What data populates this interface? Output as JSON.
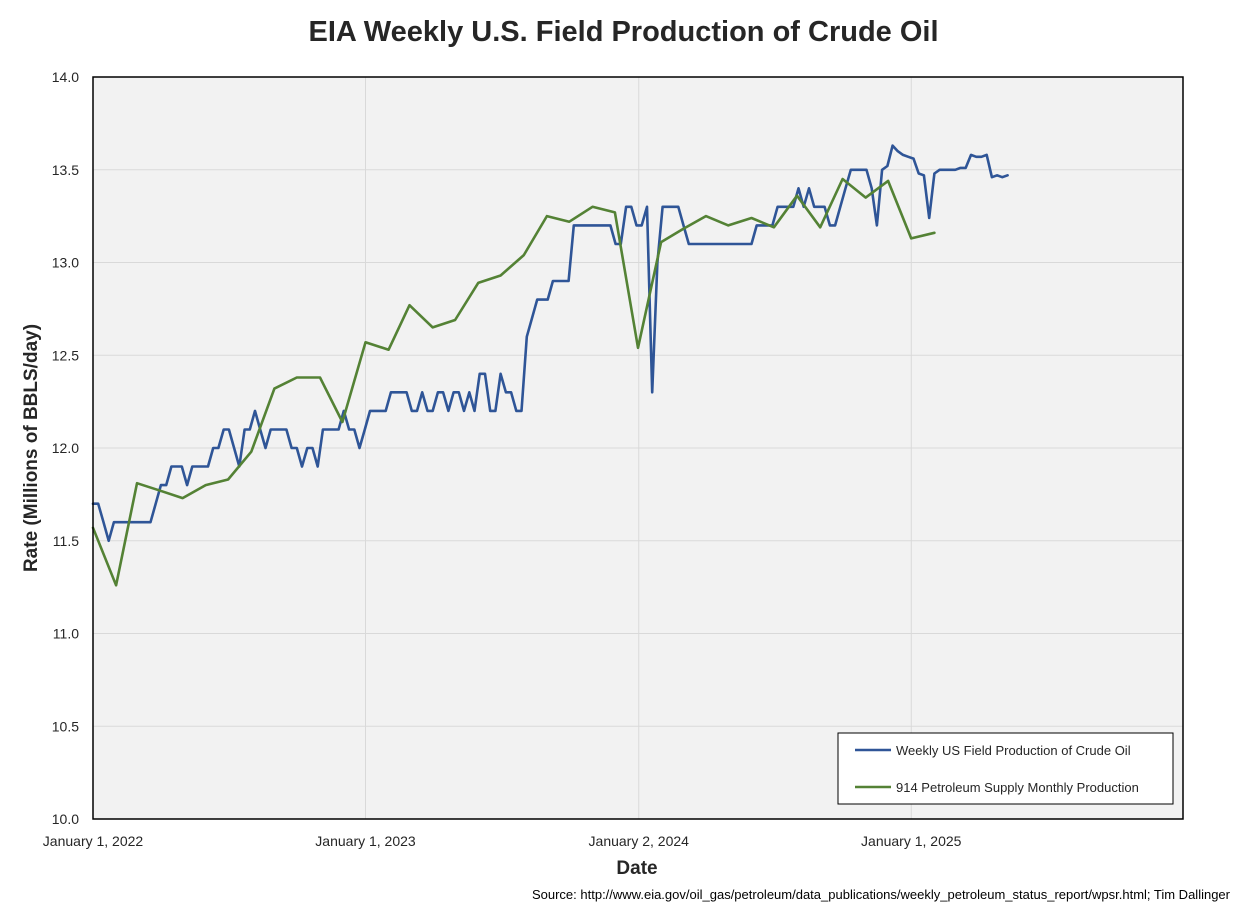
{
  "chart_data": {
    "type": "line",
    "title": "EIA Weekly U.S. Field Production of Crude Oil",
    "xlabel": "Date",
    "ylabel": "Rate (Millions of BBLS/day)",
    "source": "Source: http://www.eia.gov/oil_gas/petroleum/data_publications/weekly_petroleum_status_report/wpsr.html; Tim Dallinger",
    "ylim": [
      10.0,
      14.0
    ],
    "xlim": [
      "2022-01-01",
      "2025-12-31"
    ],
    "y_ticks": [
      "10.0",
      "10.5",
      "11.0",
      "11.5",
      "12.0",
      "12.5",
      "13.0",
      "13.5",
      "14.0"
    ],
    "x_ticks": [
      {
        "date": "2022-01-01",
        "label": "January 1, 2022"
      },
      {
        "date": "2023-01-01",
        "label": "January 1, 2023"
      },
      {
        "date": "2024-01-02",
        "label": "January 2, 2024"
      },
      {
        "date": "2025-01-01",
        "label": "January 1, 2025"
      }
    ],
    "grid": true,
    "legend_position": "bottom-right",
    "series": [
      {
        "name": "Weekly US Field Production of Crude Oil",
        "color": "#2f5597",
        "points": [
          [
            "2022-01-01",
            11.7
          ],
          [
            "2022-01-08",
            11.7
          ],
          [
            "2022-01-15",
            11.6
          ],
          [
            "2022-01-22",
            11.5
          ],
          [
            "2022-01-29",
            11.6
          ],
          [
            "2022-02-05",
            11.6
          ],
          [
            "2022-02-12",
            11.6
          ],
          [
            "2022-02-19",
            11.6
          ],
          [
            "2022-02-26",
            11.6
          ],
          [
            "2022-03-05",
            11.6
          ],
          [
            "2022-03-12",
            11.6
          ],
          [
            "2022-03-19",
            11.6
          ],
          [
            "2022-03-26",
            11.7
          ],
          [
            "2022-04-02",
            11.8
          ],
          [
            "2022-04-09",
            11.8
          ],
          [
            "2022-04-16",
            11.9
          ],
          [
            "2022-04-23",
            11.9
          ],
          [
            "2022-04-30",
            11.9
          ],
          [
            "2022-05-07",
            11.8
          ],
          [
            "2022-05-14",
            11.9
          ],
          [
            "2022-05-21",
            11.9
          ],
          [
            "2022-05-28",
            11.9
          ],
          [
            "2022-06-04",
            11.9
          ],
          [
            "2022-06-11",
            12.0
          ],
          [
            "2022-06-18",
            12.0
          ],
          [
            "2022-06-25",
            12.1
          ],
          [
            "2022-07-02",
            12.1
          ],
          [
            "2022-07-09",
            12.0
          ],
          [
            "2022-07-16",
            11.9
          ],
          [
            "2022-07-23",
            12.1
          ],
          [
            "2022-07-30",
            12.1
          ],
          [
            "2022-08-06",
            12.2
          ],
          [
            "2022-08-13",
            12.1
          ],
          [
            "2022-08-20",
            12.0
          ],
          [
            "2022-08-27",
            12.1
          ],
          [
            "2022-09-03",
            12.1
          ],
          [
            "2022-09-10",
            12.1
          ],
          [
            "2022-09-17",
            12.1
          ],
          [
            "2022-09-24",
            12.0
          ],
          [
            "2022-10-01",
            12.0
          ],
          [
            "2022-10-08",
            11.9
          ],
          [
            "2022-10-15",
            12.0
          ],
          [
            "2022-10-22",
            12.0
          ],
          [
            "2022-10-29",
            11.9
          ],
          [
            "2022-11-05",
            12.1
          ],
          [
            "2022-11-12",
            12.1
          ],
          [
            "2022-11-19",
            12.1
          ],
          [
            "2022-11-26",
            12.1
          ],
          [
            "2022-12-03",
            12.2
          ],
          [
            "2022-12-10",
            12.1
          ],
          [
            "2022-12-17",
            12.1
          ],
          [
            "2022-12-24",
            12.0
          ],
          [
            "2022-12-31",
            12.1
          ],
          [
            "2023-01-07",
            12.2
          ],
          [
            "2023-01-14",
            12.2
          ],
          [
            "2023-01-21",
            12.2
          ],
          [
            "2023-01-28",
            12.2
          ],
          [
            "2023-02-04",
            12.3
          ],
          [
            "2023-02-11",
            12.3
          ],
          [
            "2023-02-18",
            12.3
          ],
          [
            "2023-02-25",
            12.3
          ],
          [
            "2023-03-04",
            12.2
          ],
          [
            "2023-03-11",
            12.2
          ],
          [
            "2023-03-18",
            12.3
          ],
          [
            "2023-03-25",
            12.2
          ],
          [
            "2023-04-01",
            12.2
          ],
          [
            "2023-04-08",
            12.3
          ],
          [
            "2023-04-15",
            12.3
          ],
          [
            "2023-04-22",
            12.2
          ],
          [
            "2023-04-29",
            12.3
          ],
          [
            "2023-05-06",
            12.3
          ],
          [
            "2023-05-13",
            12.2
          ],
          [
            "2023-05-20",
            12.3
          ],
          [
            "2023-05-27",
            12.2
          ],
          [
            "2023-06-03",
            12.4
          ],
          [
            "2023-06-10",
            12.4
          ],
          [
            "2023-06-17",
            12.2
          ],
          [
            "2023-06-24",
            12.2
          ],
          [
            "2023-07-01",
            12.4
          ],
          [
            "2023-07-08",
            12.3
          ],
          [
            "2023-07-15",
            12.3
          ],
          [
            "2023-07-22",
            12.2
          ],
          [
            "2023-07-29",
            12.2
          ],
          [
            "2023-08-05",
            12.6
          ],
          [
            "2023-08-12",
            12.7
          ],
          [
            "2023-08-19",
            12.8
          ],
          [
            "2023-08-26",
            12.8
          ],
          [
            "2023-09-02",
            12.8
          ],
          [
            "2023-09-09",
            12.9
          ],
          [
            "2023-09-16",
            12.9
          ],
          [
            "2023-09-23",
            12.9
          ],
          [
            "2023-09-30",
            12.9
          ],
          [
            "2023-10-07",
            13.2
          ],
          [
            "2023-10-14",
            13.2
          ],
          [
            "2023-10-21",
            13.2
          ],
          [
            "2023-10-28",
            13.2
          ],
          [
            "2023-11-04",
            13.2
          ],
          [
            "2023-11-11",
            13.2
          ],
          [
            "2023-11-18",
            13.2
          ],
          [
            "2023-11-25",
            13.2
          ],
          [
            "2023-12-02",
            13.1
          ],
          [
            "2023-12-09",
            13.1
          ],
          [
            "2023-12-16",
            13.3
          ],
          [
            "2023-12-23",
            13.3
          ],
          [
            "2023-12-30",
            13.2
          ],
          [
            "2024-01-06",
            13.2
          ],
          [
            "2024-01-13",
            13.3
          ],
          [
            "2024-01-20",
            12.3
          ],
          [
            "2024-01-27",
            13.0
          ],
          [
            "2024-02-03",
            13.3
          ],
          [
            "2024-02-10",
            13.3
          ],
          [
            "2024-02-17",
            13.3
          ],
          [
            "2024-02-24",
            13.3
          ],
          [
            "2024-03-02",
            13.2
          ],
          [
            "2024-03-09",
            13.1
          ],
          [
            "2024-03-16",
            13.1
          ],
          [
            "2024-03-23",
            13.1
          ],
          [
            "2024-03-30",
            13.1
          ],
          [
            "2024-04-06",
            13.1
          ],
          [
            "2024-04-13",
            13.1
          ],
          [
            "2024-04-20",
            13.1
          ],
          [
            "2024-04-27",
            13.1
          ],
          [
            "2024-05-04",
            13.1
          ],
          [
            "2024-05-11",
            13.1
          ],
          [
            "2024-05-18",
            13.1
          ],
          [
            "2024-05-25",
            13.1
          ],
          [
            "2024-06-01",
            13.1
          ],
          [
            "2024-06-08",
            13.2
          ],
          [
            "2024-06-15",
            13.2
          ],
          [
            "2024-06-22",
            13.2
          ],
          [
            "2024-06-29",
            13.2
          ],
          [
            "2024-07-06",
            13.3
          ],
          [
            "2024-07-13",
            13.3
          ],
          [
            "2024-07-20",
            13.3
          ],
          [
            "2024-07-27",
            13.3
          ],
          [
            "2024-08-03",
            13.4
          ],
          [
            "2024-08-10",
            13.3
          ],
          [
            "2024-08-17",
            13.4
          ],
          [
            "2024-08-24",
            13.3
          ],
          [
            "2024-08-31",
            13.3
          ],
          [
            "2024-09-07",
            13.3
          ],
          [
            "2024-09-14",
            13.2
          ],
          [
            "2024-09-21",
            13.2
          ],
          [
            "2024-09-28",
            13.3
          ],
          [
            "2024-10-05",
            13.4
          ],
          [
            "2024-10-12",
            13.5
          ],
          [
            "2024-10-19",
            13.5
          ],
          [
            "2024-10-26",
            13.5
          ],
          [
            "2024-11-02",
            13.5
          ],
          [
            "2024-11-09",
            13.4
          ],
          [
            "2024-11-16",
            13.2
          ],
          [
            "2024-11-23",
            13.5
          ],
          [
            "2024-11-30",
            13.52
          ],
          [
            "2024-12-07",
            13.63
          ],
          [
            "2024-12-14",
            13.6
          ],
          [
            "2024-12-21",
            13.58
          ],
          [
            "2024-12-28",
            13.57
          ],
          [
            "2025-01-04",
            13.56
          ],
          [
            "2025-01-11",
            13.48
          ],
          [
            "2025-01-18",
            13.47
          ],
          [
            "2025-01-25",
            13.24
          ],
          [
            "2025-02-01",
            13.48
          ],
          [
            "2025-02-08",
            13.5
          ],
          [
            "2025-02-15",
            13.5
          ],
          [
            "2025-02-22",
            13.5
          ],
          [
            "2025-03-01",
            13.5
          ],
          [
            "2025-03-08",
            13.51
          ],
          [
            "2025-03-15",
            13.51
          ],
          [
            "2025-03-22",
            13.58
          ],
          [
            "2025-03-29",
            13.57
          ],
          [
            "2025-04-05",
            13.57
          ],
          [
            "2025-04-12",
            13.58
          ],
          [
            "2025-04-19",
            13.46
          ],
          [
            "2025-04-26",
            13.47
          ],
          [
            "2025-05-03",
            13.46
          ],
          [
            "2025-05-10",
            13.47
          ]
        ]
      },
      {
        "name": "914 Petroleum Supply Monthly Production",
        "color": "#548235",
        "points": [
          [
            "2022-01-01",
            11.57
          ],
          [
            "2022-02-01",
            11.26
          ],
          [
            "2022-03-01",
            11.81
          ],
          [
            "2022-04-01",
            11.77
          ],
          [
            "2022-05-01",
            11.73
          ],
          [
            "2022-06-01",
            11.8
          ],
          [
            "2022-07-01",
            11.83
          ],
          [
            "2022-08-01",
            11.98
          ],
          [
            "2022-09-01",
            12.32
          ],
          [
            "2022-10-01",
            12.38
          ],
          [
            "2022-11-01",
            12.38
          ],
          [
            "2022-12-01",
            12.14
          ],
          [
            "2023-01-01",
            12.57
          ],
          [
            "2023-02-01",
            12.53
          ],
          [
            "2023-03-01",
            12.77
          ],
          [
            "2023-04-01",
            12.65
          ],
          [
            "2023-05-01",
            12.69
          ],
          [
            "2023-06-01",
            12.89
          ],
          [
            "2023-07-01",
            12.93
          ],
          [
            "2023-08-01",
            13.04
          ],
          [
            "2023-09-01",
            13.25
          ],
          [
            "2023-10-01",
            13.22
          ],
          [
            "2023-11-01",
            13.3
          ],
          [
            "2023-12-01",
            13.27
          ],
          [
            "2024-01-01",
            12.54
          ],
          [
            "2024-02-01",
            13.11
          ],
          [
            "2024-03-01",
            13.18
          ],
          [
            "2024-04-01",
            13.25
          ],
          [
            "2024-05-01",
            13.2
          ],
          [
            "2024-06-01",
            13.24
          ],
          [
            "2024-07-01",
            13.19
          ],
          [
            "2024-08-01",
            13.36
          ],
          [
            "2024-09-01",
            13.19
          ],
          [
            "2024-10-01",
            13.45
          ],
          [
            "2024-11-01",
            13.35
          ],
          [
            "2024-12-01",
            13.44
          ],
          [
            "2025-01-01",
            13.13
          ],
          [
            "2025-02-01",
            13.16
          ]
        ]
      }
    ]
  }
}
